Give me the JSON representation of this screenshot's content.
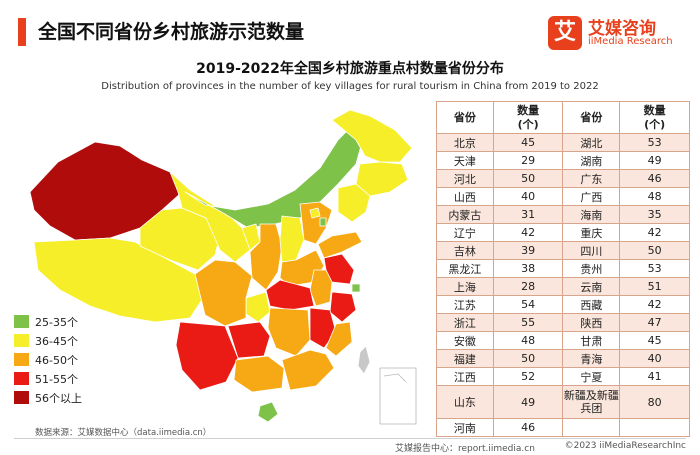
{
  "header": {
    "title": "全国不同省份乡村旅游示范数量",
    "logo_mark": "艾",
    "logo_name": "艾媒咨询",
    "logo_sub": "iiMedia Research"
  },
  "chart_title": "2019-2022年全国乡村旅游重点村数量省份分布",
  "chart_subtitle": "Distribution of provinces  in  the number of key villages  for rural  tourism in China from 2019 to 2022",
  "colors": {
    "green": "#7ec24a",
    "yellow": "#f6ee28",
    "orange": "#f6a914",
    "red": "#ea1a14",
    "darkred": "#b00c0c",
    "accent": "#e8401c"
  },
  "legend": [
    {
      "label": "25-35个",
      "color": "#7ec24a"
    },
    {
      "label": "36-45个",
      "color": "#f6ee28"
    },
    {
      "label": "46-50个",
      "color": "#f6a914"
    },
    {
      "label": "51-55个",
      "color": "#ea1a14"
    },
    {
      "label": "56个以上",
      "color": "#b00c0c"
    }
  ],
  "table": {
    "headers": [
      "省份",
      "数量\n(个)",
      "省份",
      "数量\n(个)"
    ],
    "rows": [
      [
        "北京",
        "45",
        "湖北",
        "53"
      ],
      [
        "天津",
        "29",
        "湖南",
        "49"
      ],
      [
        "河北",
        "50",
        "广东",
        "46"
      ],
      [
        "山西",
        "40",
        "广西",
        "48"
      ],
      [
        "内蒙古",
        "31",
        "海南",
        "35"
      ],
      [
        "辽宁",
        "42",
        "重庆",
        "42"
      ],
      [
        "吉林",
        "39",
        "四川",
        "50"
      ],
      [
        "黑龙江",
        "38",
        "贵州",
        "53"
      ],
      [
        "上海",
        "28",
        "云南",
        "51"
      ],
      [
        "江苏",
        "54",
        "西藏",
        "42"
      ],
      [
        "浙江",
        "55",
        "陕西",
        "47"
      ],
      [
        "安徽",
        "48",
        "甘肃",
        "45"
      ],
      [
        "福建",
        "50",
        "青海",
        "40"
      ],
      [
        "江西",
        "52",
        "宁夏",
        "41"
      ],
      [
        "山东",
        "49",
        "新疆及新疆兵团",
        "80"
      ],
      [
        "河南",
        "46",
        "",
        ""
      ]
    ]
  },
  "source": "数据来源：艾媒数据中心（data.iimedia.cn）",
  "footer": {
    "left": "艾媒报告中心：report.iimedia.cn",
    "right": "©2023 iiMediaResearchInc"
  }
}
